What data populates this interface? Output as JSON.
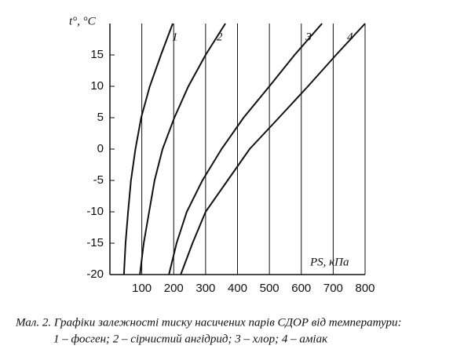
{
  "chart_data": {
    "type": "line",
    "ylabel": "t°, °C",
    "xlabel": "PS, кПа",
    "caption": [
      "Мал. 2. Графіки залежності тиску насичених парів СДОР від температури:",
      "1 – фосген; 2 – сірчистий ангідрид; 3 – хлор; 4 – аміак"
    ],
    "xlim": [
      0,
      800
    ],
    "ylim": [
      -20,
      20
    ],
    "xticks": [
      100,
      200,
      300,
      400,
      500,
      600,
      700,
      800
    ],
    "yticks": [
      -20,
      -15,
      -10,
      -5,
      0,
      5,
      10,
      15
    ],
    "grid": true,
    "color": "#111111",
    "series": [
      {
        "name": "1",
        "x": [
          44,
          49,
          57,
          66,
          80,
          98,
          125,
          160,
          197
        ],
        "values": [
          -20,
          -15,
          -10,
          -5,
          0,
          5,
          10,
          15,
          20
        ]
      },
      {
        "name": "2",
        "x": [
          94,
          106,
          123,
          140,
          165,
          202,
          246,
          300,
          362
        ],
        "values": [
          -20,
          -15,
          -10,
          -5,
          0,
          5,
          10,
          15,
          20
        ]
      },
      {
        "name": "3",
        "x": [
          185,
          209,
          241,
          290,
          350,
          419,
          500,
          579,
          665
        ],
        "values": [
          -20,
          -15,
          -10,
          -5,
          0,
          5,
          10,
          15,
          20
        ]
      },
      {
        "name": "4",
        "x": [
          222,
          259,
          300,
          369,
          438,
          530,
          621,
          709,
          800
        ],
        "values": [
          -20,
          -15,
          -10,
          -5,
          0,
          5,
          10,
          15,
          20
        ]
      }
    ]
  }
}
